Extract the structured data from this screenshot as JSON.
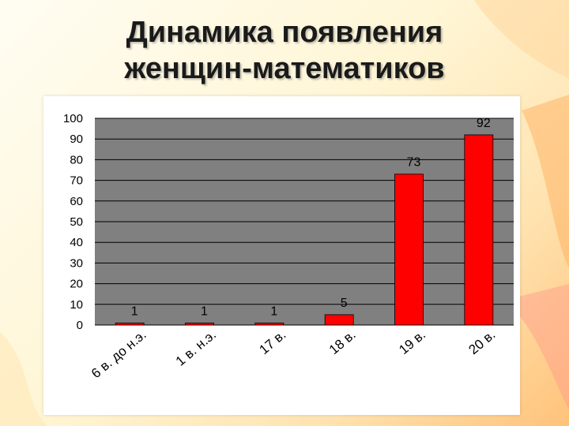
{
  "slide": {
    "title_line1": "Динамика появления",
    "title_line2": "женщин-математиков"
  },
  "colors": {
    "plot_background": "#808080",
    "bar_fill": "#ff0000",
    "bar_stroke": "#000000",
    "gridline": "#000000"
  },
  "chart_data": {
    "type": "bar",
    "categories": [
      "6 в. до н.э.",
      "1 в. н.э.",
      "17 в.",
      "18 в.",
      "19 в.",
      "20 в."
    ],
    "values": [
      1,
      1,
      1,
      5,
      73,
      92
    ],
    "ylim": [
      0,
      100
    ],
    "yticks": [
      0,
      10,
      20,
      30,
      40,
      50,
      60,
      70,
      80,
      90,
      100
    ],
    "grid": true,
    "legend": "none",
    "data_labels": true,
    "title": "",
    "xlabel": "",
    "ylabel": ""
  }
}
